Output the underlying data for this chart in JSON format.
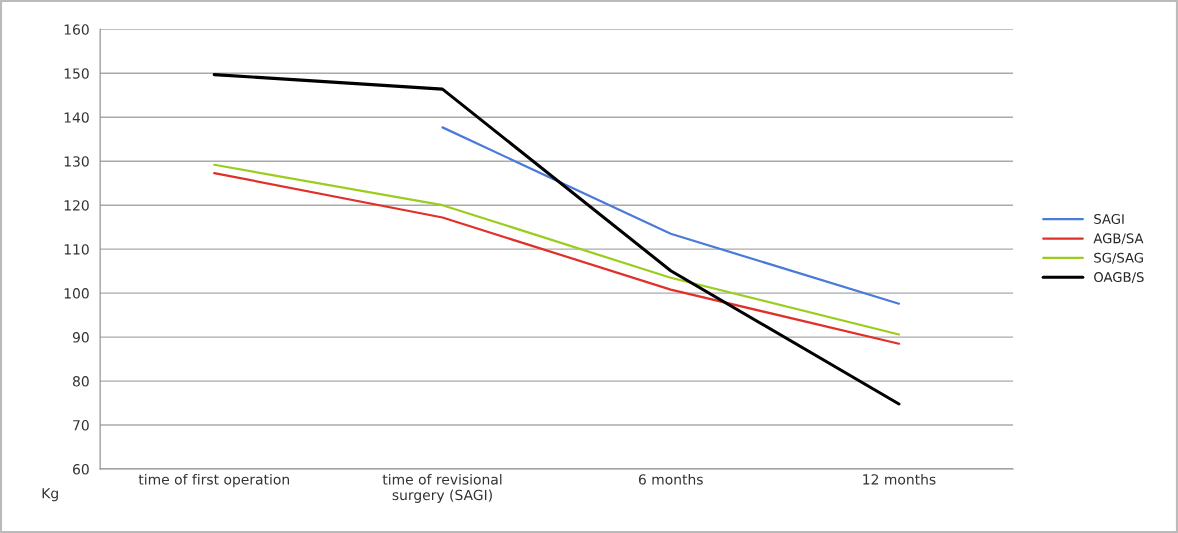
{
  "chart_data": {
    "type": "line",
    "ylabel": "Kg",
    "categories": [
      "time of first operation",
      "time of revisional\nsurgery (SAGI)",
      "6 months",
      "12 months"
    ],
    "series": [
      {
        "name": "SAGI",
        "color": "#4a7bd8",
        "values": [
          null,
          137.7,
          113.5,
          97.6
        ]
      },
      {
        "name": "AGB/SA",
        "color": "#e0302a",
        "values": [
          127.3,
          117.2,
          100.8,
          88.5
        ]
      },
      {
        "name": "SG/SAG",
        "color": "#9acd1e",
        "values": [
          129.2,
          120.0,
          103.5,
          90.6
        ]
      },
      {
        "name": "OAGB/S",
        "color": "#000000",
        "values": [
          149.7,
          146.4,
          105.1,
          74.8
        ]
      }
    ],
    "ylim": [
      60,
      160
    ],
    "yticks": [
      60,
      70,
      80,
      90,
      100,
      110,
      120,
      130,
      140,
      150,
      160
    ],
    "grid": "y",
    "legend": "right",
    "marker": "none",
    "line_style": "solid"
  }
}
